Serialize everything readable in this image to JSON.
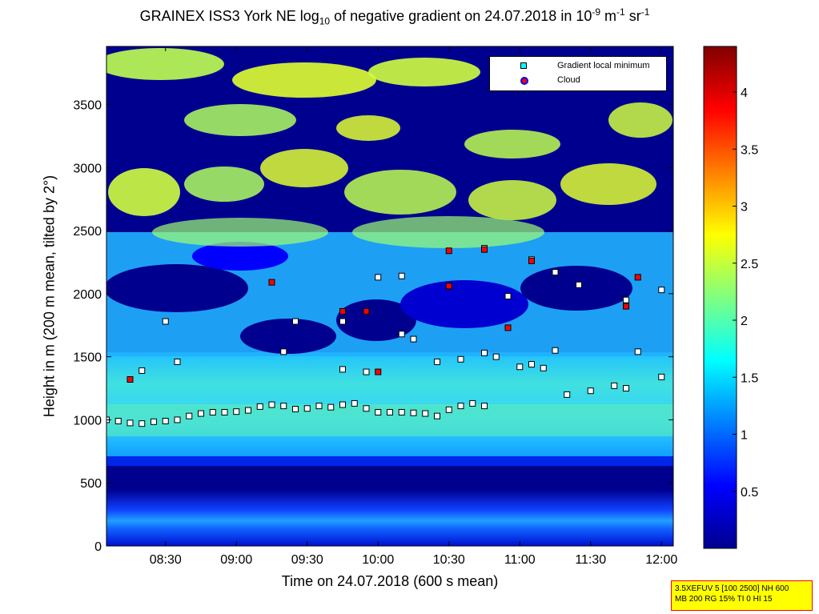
{
  "chart_data": {
    "type": "heatmap",
    "title": {
      "pre": "GRAINEX ISS3 York NE log",
      "sub": "10",
      "mid": " of negative gradient on 24.07.2018 in 10",
      "sup1": "-9",
      "mid2": " m",
      "sup2": "-1",
      "mid3": " sr",
      "sup3": "-1"
    },
    "xlabel": "Time on 24.07.2018 (600 s mean)",
    "ylabel": "Height in m (200 m mean, tilted by 2°)",
    "xlim": [
      "08:05",
      "12:05"
    ],
    "ylim": [
      0,
      3960
    ],
    "x_ticks": [
      "08:30",
      "09:00",
      "09:30",
      "10:00",
      "10:30",
      "11:00",
      "11:30",
      "12:00"
    ],
    "y_ticks": [
      0,
      500,
      1000,
      1500,
      2000,
      2500,
      3000,
      3500
    ],
    "colorbar": {
      "ticks": [
        "0.5",
        "1",
        "1.5",
        "2",
        "2.5",
        "3",
        "3.5",
        "4"
      ],
      "range": [
        0,
        4.4
      ],
      "colormap": "jet"
    },
    "legend": [
      {
        "label": "Gradient local minimum",
        "marker": "square",
        "color": "#00ffff"
      },
      {
        "label": "Cloud",
        "marker": "circle",
        "color": "#ff0000"
      }
    ],
    "legend_position": "top-right",
    "series": [
      {
        "name": "Gradient local minimum",
        "points": [
          [
            "08:05",
            1000
          ],
          [
            "08:10",
            990
          ],
          [
            "08:15",
            975
          ],
          [
            "08:20",
            970
          ],
          [
            "08:25",
            985
          ],
          [
            "08:30",
            990
          ],
          [
            "08:35",
            1000
          ],
          [
            "08:40",
            1030
          ],
          [
            "08:45",
            1050
          ],
          [
            "08:50",
            1060
          ],
          [
            "08:55",
            1060
          ],
          [
            "09:00",
            1065
          ],
          [
            "09:05",
            1075
          ],
          [
            "09:10",
            1105
          ],
          [
            "09:15",
            1120
          ],
          [
            "09:20",
            1110
          ],
          [
            "09:25",
            1085
          ],
          [
            "09:30",
            1090
          ],
          [
            "09:35",
            1110
          ],
          [
            "09:40",
            1100
          ],
          [
            "09:45",
            1120
          ],
          [
            "09:50",
            1130
          ],
          [
            "09:55",
            1090
          ],
          [
            "10:00",
            1060
          ],
          [
            "10:05",
            1060
          ],
          [
            "10:10",
            1060
          ],
          [
            "10:15",
            1055
          ],
          [
            "10:20",
            1050
          ],
          [
            "10:25",
            1030
          ],
          [
            "10:30",
            1080
          ],
          [
            "10:35",
            1110
          ],
          [
            "10:40",
            1130
          ],
          [
            "10:45",
            1110
          ],
          [
            "09:20",
            1540
          ],
          [
            "09:45",
            1400
          ],
          [
            "09:55",
            1380
          ],
          [
            "10:10",
            1680
          ],
          [
            "10:15",
            1640
          ],
          [
            "10:25",
            1460
          ],
          [
            "10:35",
            1480
          ],
          [
            "10:45",
            1530
          ],
          [
            "10:50",
            1500
          ],
          [
            "11:00",
            1420
          ],
          [
            "11:05",
            1440
          ],
          [
            "11:10",
            1410
          ],
          [
            "11:15",
            1550
          ],
          [
            "11:20",
            1200
          ],
          [
            "11:30",
            1230
          ],
          [
            "11:40",
            1270
          ],
          [
            "11:45",
            1250
          ],
          [
            "11:50",
            1540
          ],
          [
            "12:00",
            1340
          ],
          [
            "09:25",
            1780
          ],
          [
            "09:45",
            1780
          ],
          [
            "10:00",
            2130
          ],
          [
            "10:10",
            2140
          ],
          [
            "10:30",
            2060
          ],
          [
            "10:45",
            2360
          ],
          [
            "10:55",
            1980
          ],
          [
            "11:05",
            2270
          ],
          [
            "11:15",
            2170
          ],
          [
            "11:25",
            2070
          ],
          [
            "11:45",
            1950
          ],
          [
            "12:00",
            2030
          ],
          [
            "08:20",
            1390
          ],
          [
            "08:35",
            1460
          ],
          [
            "08:30",
            1780
          ]
        ]
      },
      {
        "name": "Cloud",
        "points": [
          [
            "08:15",
            1320
          ],
          [
            "09:15",
            2090
          ],
          [
            "09:45",
            1860
          ],
          [
            "09:55",
            1860
          ],
          [
            "10:00",
            1380
          ],
          [
            "10:30",
            2340
          ],
          [
            "10:30",
            2060
          ],
          [
            "10:45",
            2350
          ],
          [
            "10:55",
            1730
          ],
          [
            "11:05",
            2260
          ],
          [
            "11:45",
            1900
          ],
          [
            "11:50",
            2130
          ]
        ]
      }
    ]
  },
  "infobox": {
    "line1": "3.5XEFUV 5 [100 2500] NH 600",
    "line2": "MB 200 RG 15% TI 0 HI 15"
  },
  "colors": {
    "background": "#00008f",
    "marker_outline": "#000000"
  }
}
